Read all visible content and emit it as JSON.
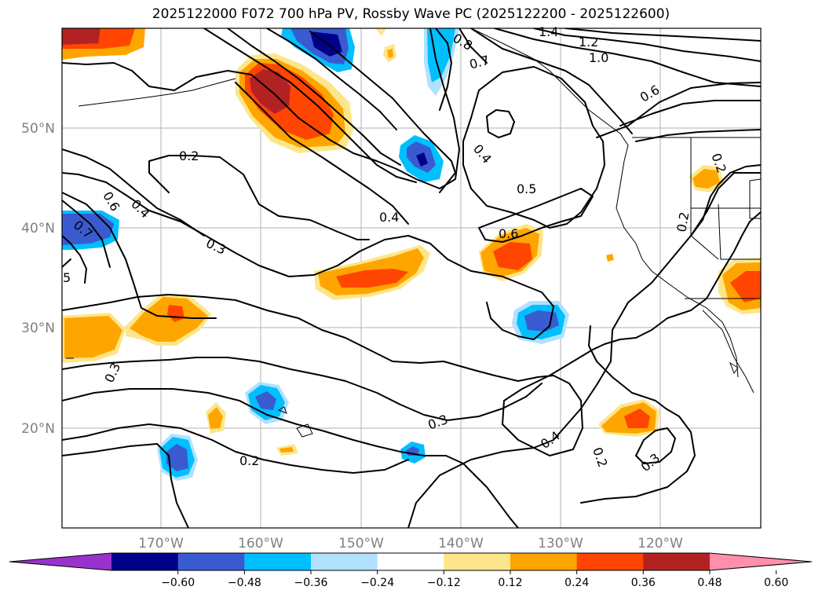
{
  "title": "2025122000 F072 700 hPa PV, Rossby Wave PC (2025122200 - 2025122600)",
  "lat_labels": [
    "50°N",
    "40°N",
    "30°N",
    "20°N"
  ],
  "lon_labels": [
    "170°W",
    "160°W",
    "150°W",
    "140°W",
    "130°W",
    "120°W"
  ],
  "contour_labels": [
    "0.2",
    "0.6",
    "0.4",
    "0.3",
    "0.4",
    "0.5",
    "0.6",
    "0.4",
    "0.7",
    "0.8",
    "1.0",
    "1.2",
    "1.4",
    "0.7",
    "0.6",
    "5",
    "0.3",
    "0.3",
    "0.2",
    "0.4",
    "0.2",
    "0.3",
    "0.2",
    "0.2"
  ],
  "colorbar": {
    "ticks": [
      "−0.60",
      "−0.48",
      "−0.36",
      "−0.24",
      "−0.12",
      "0.12",
      "0.24",
      "0.36",
      "0.48",
      "0.60"
    ],
    "colors": [
      "#9932cc",
      "#00008b",
      "#3a5bd0",
      "#00bfff",
      "#b0e2ff",
      "#ffffff",
      "#fde68a",
      "#ffa500",
      "#ff4500",
      "#b22222",
      "#ff8fab"
    ]
  }
}
